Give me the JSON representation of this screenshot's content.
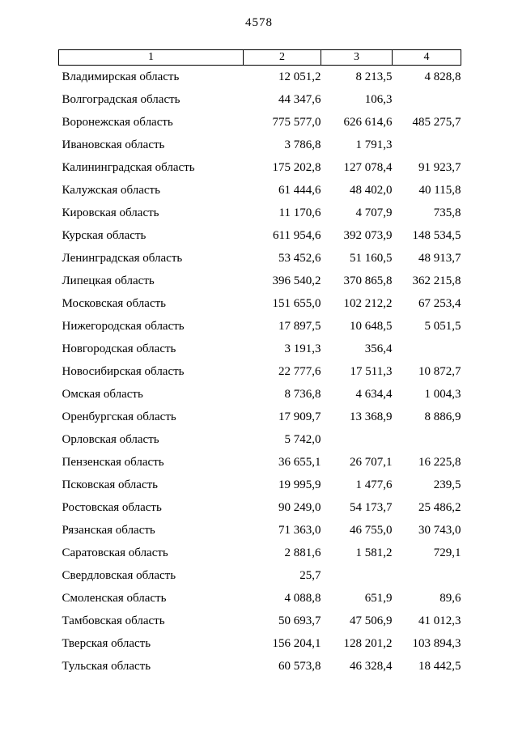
{
  "page": {
    "number": "4578"
  },
  "table": {
    "headers": [
      "1",
      "2",
      "3",
      "4"
    ],
    "rows": [
      [
        "Владимирская область",
        "12 051,2",
        "8 213,5",
        "4 828,8"
      ],
      [
        "Волгоградская область",
        "44 347,6",
        "106,3",
        ""
      ],
      [
        "Воронежская область",
        "775 577,0",
        "626 614,6",
        "485 275,7"
      ],
      [
        "Ивановская область",
        "3 786,8",
        "1 791,3",
        ""
      ],
      [
        "Калининградская область",
        "175 202,8",
        "127 078,4",
        "91 923,7"
      ],
      [
        "Калужская область",
        "61 444,6",
        "48 402,0",
        "40 115,8"
      ],
      [
        "Кировская область",
        "11 170,6",
        "4 707,9",
        "735,8"
      ],
      [
        "Курская область",
        "611 954,6",
        "392 073,9",
        "148 534,5"
      ],
      [
        "Ленинградская область",
        "53 452,6",
        "51 160,5",
        "48 913,7"
      ],
      [
        "Липецкая область",
        "396 540,2",
        "370 865,8",
        "362 215,8"
      ],
      [
        "Московская область",
        "151 655,0",
        "102 212,2",
        "67 253,4"
      ],
      [
        "Нижегородская область",
        "17 897,5",
        "10 648,5",
        "5 051,5"
      ],
      [
        "Новгородская область",
        "3 191,3",
        "356,4",
        ""
      ],
      [
        "Новосибирская область",
        "22 777,6",
        "17 511,3",
        "10 872,7"
      ],
      [
        "Омская область",
        "8 736,8",
        "4 634,4",
        "1 004,3"
      ],
      [
        "Оренбургская область",
        "17 909,7",
        "13 368,9",
        "8 886,9"
      ],
      [
        "Орловская область",
        "5 742,0",
        "",
        ""
      ],
      [
        "Пензенская область",
        "36 655,1",
        "26 707,1",
        "16 225,8"
      ],
      [
        "Псковская область",
        "19 995,9",
        "1 477,6",
        "239,5"
      ],
      [
        "Ростовская область",
        "90 249,0",
        "54 173,7",
        "25 486,2"
      ],
      [
        "Рязанская область",
        "71 363,0",
        "46 755,0",
        "30 743,0"
      ],
      [
        "Саратовская область",
        "2 881,6",
        "1 581,2",
        "729,1"
      ],
      [
        "Свердловская область",
        "25,7",
        "",
        ""
      ],
      [
        "Смоленская область",
        "4 088,8",
        "651,9",
        "89,6"
      ],
      [
        "Тамбовская область",
        "50 693,7",
        "47 506,9",
        "41 012,3"
      ],
      [
        "Тверская область",
        "156 204,1",
        "128 201,2",
        "103 894,3"
      ],
      [
        "Тульская область",
        "60 573,8",
        "46 328,4",
        "18 442,5"
      ]
    ]
  }
}
